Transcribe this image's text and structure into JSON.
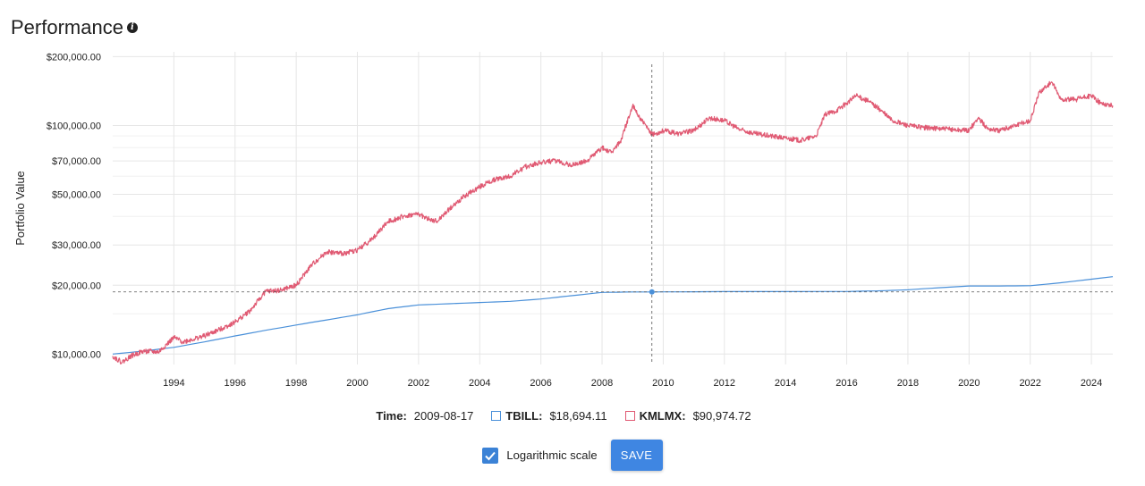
{
  "header": {
    "title": "Performance",
    "info_icon": "info-icon"
  },
  "chart_data": {
    "type": "line",
    "ylabel": "Portfolio Value",
    "y_scale": "log",
    "ylim": [
      9000,
      210000
    ],
    "xlim": [
      1992.0,
      2024.7
    ],
    "x_ticks": [
      "1994",
      "1996",
      "1998",
      "2000",
      "2002",
      "2004",
      "2006",
      "2008",
      "2010",
      "2012",
      "2014",
      "2016",
      "2018",
      "2020",
      "2022",
      "2024"
    ],
    "y_ticks": [
      {
        "value": 10000,
        "label": "$10,000.00"
      },
      {
        "value": 20000,
        "label": "$20,000.00"
      },
      {
        "value": 30000,
        "label": "$30,000.00"
      },
      {
        "value": 50000,
        "label": "$50,000.00"
      },
      {
        "value": 70000,
        "label": "$70,000.00"
      },
      {
        "value": 100000,
        "label": "$100,000.00"
      },
      {
        "value": 200000,
        "label": "$200,000.00"
      }
    ],
    "grid": true,
    "crosshair": {
      "x": 2009.63,
      "y": 18694.11
    },
    "series": [
      {
        "name": "TBILL",
        "color": "#4a90d9",
        "points": [
          [
            1992.0,
            10000
          ],
          [
            1993.0,
            10300
          ],
          [
            1994.0,
            10700
          ],
          [
            1995.0,
            11300
          ],
          [
            1996.0,
            12000
          ],
          [
            1997.0,
            12700
          ],
          [
            1998.0,
            13400
          ],
          [
            1999.0,
            14100
          ],
          [
            2000.0,
            14850
          ],
          [
            2001.0,
            15800
          ],
          [
            2002.0,
            16400
          ],
          [
            2003.0,
            16600
          ],
          [
            2004.0,
            16800
          ],
          [
            2005.0,
            17000
          ],
          [
            2006.0,
            17400
          ],
          [
            2007.0,
            18000
          ],
          [
            2008.0,
            18600
          ],
          [
            2009.0,
            18690
          ],
          [
            2010.0,
            18700
          ],
          [
            2012.0,
            18750
          ],
          [
            2014.0,
            18760
          ],
          [
            2016.0,
            18780
          ],
          [
            2017.0,
            18900
          ],
          [
            2018.0,
            19100
          ],
          [
            2019.0,
            19500
          ],
          [
            2020.0,
            19850
          ],
          [
            2021.0,
            19850
          ],
          [
            2022.0,
            19900
          ],
          [
            2023.0,
            20500
          ],
          [
            2024.7,
            21800
          ]
        ]
      },
      {
        "name": "KMLMX",
        "color": "#e05a73",
        "points": [
          [
            1992.0,
            9800
          ],
          [
            1992.3,
            9200
          ],
          [
            1992.6,
            9800
          ],
          [
            1993.0,
            10300
          ],
          [
            1993.5,
            10200
          ],
          [
            1994.0,
            11800
          ],
          [
            1994.3,
            11300
          ],
          [
            1995.0,
            12000
          ],
          [
            1995.5,
            12800
          ],
          [
            1996.0,
            13800
          ],
          [
            1996.5,
            15500
          ],
          [
            1997.0,
            18800
          ],
          [
            1997.5,
            19000
          ],
          [
            1998.0,
            20000
          ],
          [
            1998.5,
            24500
          ],
          [
            1999.0,
            28000
          ],
          [
            1999.5,
            27500
          ],
          [
            2000.0,
            28500
          ],
          [
            2000.5,
            32000
          ],
          [
            2001.0,
            38000
          ],
          [
            2001.5,
            40000
          ],
          [
            2002.0,
            41000
          ],
          [
            2002.3,
            39000
          ],
          [
            2002.6,
            38000
          ],
          [
            2003.0,
            43000
          ],
          [
            2003.5,
            49000
          ],
          [
            2004.0,
            54000
          ],
          [
            2004.5,
            58000
          ],
          [
            2005.0,
            60000
          ],
          [
            2005.5,
            66000
          ],
          [
            2006.0,
            69000
          ],
          [
            2006.5,
            70000
          ],
          [
            2007.0,
            67000
          ],
          [
            2007.5,
            70000
          ],
          [
            2008.0,
            80000
          ],
          [
            2008.3,
            76000
          ],
          [
            2008.6,
            85000
          ],
          [
            2009.0,
            122000
          ],
          [
            2009.3,
            105000
          ],
          [
            2009.63,
            90974
          ],
          [
            2010.0,
            95000
          ],
          [
            2010.5,
            92000
          ],
          [
            2011.0,
            95000
          ],
          [
            2011.5,
            108000
          ],
          [
            2012.0,
            105000
          ],
          [
            2012.5,
            96000
          ],
          [
            2013.0,
            92000
          ],
          [
            2013.5,
            90000
          ],
          [
            2014.0,
            88000
          ],
          [
            2014.5,
            86000
          ],
          [
            2015.0,
            90000
          ],
          [
            2015.3,
            112000
          ],
          [
            2015.6,
            115000
          ],
          [
            2016.0,
            125000
          ],
          [
            2016.3,
            135000
          ],
          [
            2016.7,
            128000
          ],
          [
            2017.0,
            120000
          ],
          [
            2017.5,
            105000
          ],
          [
            2018.0,
            100000
          ],
          [
            2018.5,
            98000
          ],
          [
            2019.0,
            97000
          ],
          [
            2019.5,
            96000
          ],
          [
            2020.0,
            95000
          ],
          [
            2020.3,
            108000
          ],
          [
            2020.6,
            97000
          ],
          [
            2021.0,
            95000
          ],
          [
            2021.5,
            100000
          ],
          [
            2022.0,
            105000
          ],
          [
            2022.3,
            140000
          ],
          [
            2022.7,
            155000
          ],
          [
            2023.0,
            130000
          ],
          [
            2023.5,
            130000
          ],
          [
            2024.0,
            135000
          ],
          [
            2024.3,
            125000
          ],
          [
            2024.7,
            122000
          ]
        ]
      }
    ]
  },
  "legend": {
    "time_label": "Time:",
    "time_value": "2009-08-17",
    "items": [
      {
        "label": "TBILL:",
        "value": "$18,694.11",
        "color": "#4a90d9"
      },
      {
        "label": "KMLMX:",
        "value": "$90,974.72",
        "color": "#e05a73"
      }
    ]
  },
  "controls": {
    "log_label": "Logarithmic scale",
    "log_checked": true,
    "save_label": "SAVE"
  }
}
